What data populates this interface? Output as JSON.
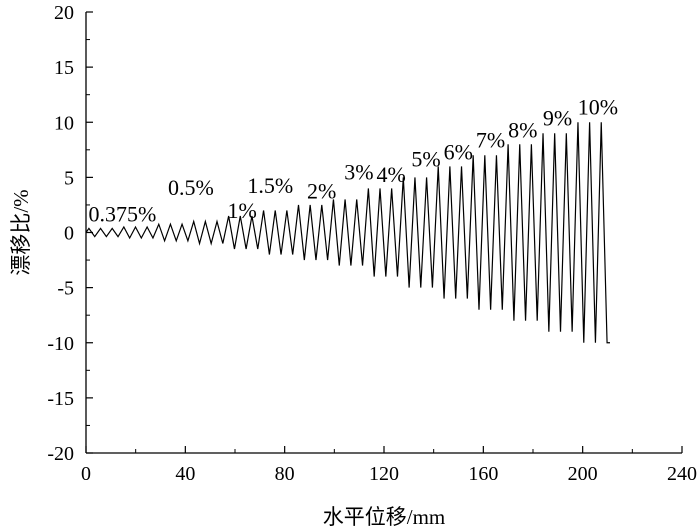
{
  "chart_data": {
    "type": "line",
    "xlabel": "水平位移/mm",
    "ylabel": "漂移比/%",
    "xlim": [
      0,
      240
    ],
    "ylim": [
      -20,
      20
    ],
    "x_ticks": [
      "0",
      "40",
      "80",
      "120",
      "160",
      "200",
      "240"
    ],
    "y_ticks": [
      "20",
      "15",
      "10",
      "5",
      "0",
      "-5",
      "-10",
      "-15",
      "-20"
    ],
    "grid": false,
    "legend": "none",
    "color": "#000000",
    "stages": [
      {
        "drift": 0.375,
        "cycles": 3
      },
      {
        "drift": 0.5,
        "cycles": 3
      },
      {
        "drift": 0.75,
        "cycles": 3
      },
      {
        "drift": 1,
        "cycles": 3
      },
      {
        "drift": 1.5,
        "cycles": 3
      },
      {
        "drift": 2,
        "cycles": 3
      },
      {
        "drift": 2.5,
        "cycles": 3
      },
      {
        "drift": 3,
        "cycles": 3
      },
      {
        "drift": 4,
        "cycles": 3
      },
      {
        "drift": 5,
        "cycles": 3
      },
      {
        "drift": 6,
        "cycles": 3
      },
      {
        "drift": 7,
        "cycles": 3
      },
      {
        "drift": 8,
        "cycles": 3
      },
      {
        "drift": 9,
        "cycles": 3
      },
      {
        "drift": 10,
        "cycles": 3
      }
    ],
    "x_end": 211,
    "y_end": -10,
    "annotations": [
      {
        "text": "0.375%",
        "x": 1,
        "y": 1
      },
      {
        "text": "0.5%",
        "x": 33,
        "y": 3.4
      },
      {
        "text": "1%",
        "x": 57,
        "y": 1.3
      },
      {
        "text": "1.5%",
        "x": 65,
        "y": 3.6
      },
      {
        "text": "2%",
        "x": 89,
        "y": 3.1
      },
      {
        "text": "3%",
        "x": 104,
        "y": 4.8
      },
      {
        "text": "4%",
        "x": 117,
        "y": 4.6
      },
      {
        "text": "5%",
        "x": 131,
        "y": 6.0
      },
      {
        "text": "6%",
        "x": 144,
        "y": 6.6
      },
      {
        "text": "7%",
        "x": 157,
        "y": 7.7
      },
      {
        "text": "8%",
        "x": 170,
        "y": 8.6
      },
      {
        "text": "9%",
        "x": 184,
        "y": 9.7
      },
      {
        "text": "10%",
        "x": 198,
        "y": 10.7
      }
    ]
  }
}
